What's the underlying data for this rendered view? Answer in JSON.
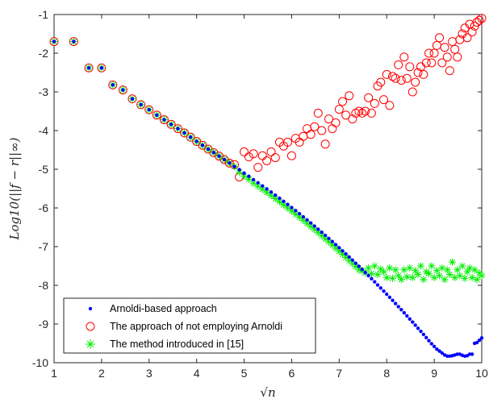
{
  "chart_data": {
    "type": "scatter",
    "title": "",
    "xlabel": "√n",
    "ylabel": "Log10(||f − r||∞)",
    "xlim": [
      1,
      10
    ],
    "ylim": [
      -10,
      -1
    ],
    "xticks": [
      "1",
      "2",
      "3",
      "4",
      "5",
      "6",
      "7",
      "8",
      "9",
      "10"
    ],
    "yticks": [
      "-1",
      "-2",
      "-3",
      "-4",
      "-5",
      "-6",
      "-7",
      "-8",
      "-9",
      "-10"
    ],
    "grid": false,
    "legend_position": "bottom-left",
    "series": [
      {
        "name": "Arnoldi-based approach",
        "marker": "dot",
        "color": "#0000ff",
        "x": [
          1,
          1.414,
          1.732,
          2,
          2.236,
          2.449,
          2.646,
          2.828,
          3,
          3.162,
          3.317,
          3.464,
          3.606,
          3.742,
          3.873,
          4,
          4.123,
          4.243,
          4.359,
          4.472,
          4.583,
          4.69,
          4.796,
          4.899,
          5,
          5.099,
          5.196,
          5.292,
          5.385,
          5.477,
          5.568,
          5.657,
          5.745,
          5.831,
          5.916,
          6,
          6.083,
          6.164,
          6.245,
          6.325,
          6.403,
          6.481,
          6.557,
          6.633,
          6.708,
          6.782,
          6.856,
          6.928,
          7,
          7.071,
          7.141,
          7.211,
          7.28,
          7.348,
          7.416,
          7.483,
          7.55,
          7.616,
          7.681,
          7.746,
          7.81,
          7.874,
          7.937,
          8,
          8.062,
          8.124,
          8.185,
          8.246,
          8.307,
          8.367,
          8.426,
          8.485,
          8.544,
          8.602,
          8.66,
          8.718,
          8.775,
          8.832,
          8.888,
          8.944,
          9,
          9.055,
          9.11,
          9.165,
          9.22,
          9.274,
          9.327,
          9.381,
          9.434,
          9.487,
          9.539,
          9.592,
          9.644,
          9.695,
          9.747,
          9.798,
          9.849,
          9.899,
          9.95,
          10
        ],
        "y": [
          -1.7,
          -1.7,
          -2.38,
          -2.38,
          -2.82,
          -2.95,
          -3.18,
          -3.33,
          -3.46,
          -3.6,
          -3.72,
          -3.84,
          -3.95,
          -4.06,
          -4.17,
          -4.28,
          -4.38,
          -4.48,
          -4.57,
          -4.66,
          -4.75,
          -4.84,
          -4.93,
          -5.01,
          -5.1,
          -5.18,
          -5.27,
          -5.35,
          -5.43,
          -5.51,
          -5.59,
          -5.67,
          -5.75,
          -5.83,
          -5.91,
          -5.99,
          -6.07,
          -6.15,
          -6.23,
          -6.31,
          -6.39,
          -6.47,
          -6.55,
          -6.63,
          -6.71,
          -6.79,
          -6.87,
          -6.95,
          -7.03,
          -7.11,
          -7.19,
          -7.27,
          -7.35,
          -7.43,
          -7.51,
          -7.59,
          -7.67,
          -7.75,
          -7.83,
          -7.91,
          -7.99,
          -8.07,
          -8.15,
          -8.23,
          -8.31,
          -8.39,
          -8.47,
          -8.55,
          -8.63,
          -8.71,
          -8.79,
          -8.87,
          -8.95,
          -9.03,
          -9.11,
          -9.19,
          -9.27,
          -9.35,
          -9.43,
          -9.51,
          -9.58,
          -9.65,
          -9.7,
          -9.75,
          -9.8,
          -9.83,
          -9.83,
          -9.82,
          -9.8,
          -9.78,
          -9.78,
          -9.81,
          -9.83,
          -9.82,
          -9.78,
          -9.78,
          -9.5,
          -9.48,
          -9.42,
          -9.36
        ]
      },
      {
        "name": "The approach of not employing Arnoldi",
        "marker": "circle",
        "color": "#ff0000",
        "x": [
          1,
          1.414,
          1.732,
          2,
          2.236,
          2.449,
          2.646,
          2.828,
          3,
          3.162,
          3.317,
          3.464,
          3.606,
          3.742,
          3.873,
          4,
          4.123,
          4.243,
          4.359,
          4.472,
          4.583,
          4.69,
          4.796,
          4.899,
          5,
          5.099,
          5.196,
          5.292,
          5.385,
          5.477,
          5.568,
          5.657,
          5.745,
          5.831,
          5.916,
          6,
          6.083,
          6.164,
          6.245,
          6.325,
          6.403,
          6.481,
          6.557,
          6.633,
          6.708,
          6.782,
          6.856,
          6.928,
          7,
          7.071,
          7.141,
          7.211,
          7.28,
          7.348,
          7.416,
          7.483,
          7.55,
          7.616,
          7.681,
          7.746,
          7.81,
          7.874,
          7.937,
          8,
          8.062,
          8.124,
          8.185,
          8.246,
          8.307,
          8.367,
          8.426,
          8.485,
          8.544,
          8.602,
          8.66,
          8.718,
          8.775,
          8.832,
          8.888,
          8.944,
          9,
          9.055,
          9.11,
          9.165,
          9.22,
          9.274,
          9.327,
          9.381,
          9.434,
          9.487,
          9.539,
          9.592,
          9.644,
          9.695,
          9.747,
          9.798,
          9.849,
          9.899,
          9.95,
          10
        ],
        "y": [
          -1.7,
          -1.7,
          -2.38,
          -2.38,
          -2.82,
          -2.95,
          -3.18,
          -3.33,
          -3.46,
          -3.6,
          -3.72,
          -3.84,
          -3.95,
          -4.06,
          -4.17,
          -4.28,
          -4.38,
          -4.48,
          -4.57,
          -4.66,
          -4.75,
          -4.84,
          -4.88,
          -5.2,
          -4.55,
          -4.68,
          -4.6,
          -4.95,
          -4.65,
          -4.78,
          -4.55,
          -4.7,
          -4.3,
          -4.4,
          -4.3,
          -4.65,
          -4.2,
          -4.3,
          -4.15,
          -3.95,
          -4.1,
          -3.9,
          -3.55,
          -4.0,
          -4.35,
          -3.7,
          -3.95,
          -3.8,
          -3.45,
          -3.25,
          -3.6,
          -3.1,
          -3.7,
          -3.55,
          -3.5,
          -3.55,
          -3.5,
          -3.15,
          -3.55,
          -3.3,
          -2.85,
          -2.75,
          -3.2,
          -2.55,
          -3.35,
          -2.6,
          -2.65,
          -2.3,
          -2.7,
          -2.1,
          -2.65,
          -2.35,
          -3.0,
          -2.75,
          -2.5,
          -2.35,
          -2.55,
          -2.25,
          -2.0,
          -2.25,
          -2.0,
          -1.8,
          -1.6,
          -2.25,
          -1.85,
          -2.1,
          -2.45,
          -1.7,
          -1.9,
          -2.1,
          -1.65,
          -1.5,
          -1.35,
          -1.6,
          -1.25,
          -1.45,
          -1.3,
          -1.2,
          -1.15,
          -1.1
        ]
      },
      {
        "name": "The method introduced in [15]",
        "marker": "asterisk",
        "color": "#00ee00",
        "x": [
          1,
          1.414,
          1.732,
          2,
          2.236,
          2.449,
          2.646,
          2.828,
          3,
          3.162,
          3.317,
          3.464,
          3.606,
          3.742,
          3.873,
          4,
          4.123,
          4.243,
          4.359,
          4.472,
          4.583,
          4.69,
          4.796,
          4.899,
          5,
          5.099,
          5.196,
          5.292,
          5.385,
          5.477,
          5.568,
          5.657,
          5.745,
          5.831,
          5.916,
          6,
          6.083,
          6.164,
          6.245,
          6.325,
          6.403,
          6.481,
          6.557,
          6.633,
          6.708,
          6.782,
          6.856,
          6.928,
          7,
          7.071,
          7.141,
          7.211,
          7.28,
          7.348,
          7.416,
          7.483,
          7.55,
          7.616,
          7.681,
          7.746,
          7.81,
          7.874,
          7.937,
          8,
          8.062,
          8.124,
          8.185,
          8.246,
          8.307,
          8.367,
          8.426,
          8.485,
          8.544,
          8.602,
          8.66,
          8.718,
          8.775,
          8.832,
          8.888,
          8.944,
          9,
          9.055,
          9.11,
          9.165,
          9.22,
          9.274,
          9.327,
          9.381,
          9.434,
          9.487,
          9.539,
          9.592,
          9.644,
          9.695,
          9.747,
          9.798,
          9.849,
          9.899,
          9.95,
          10
        ],
        "y": [
          -1.7,
          -1.7,
          -2.38,
          -2.38,
          -2.82,
          -2.95,
          -3.18,
          -3.33,
          -3.46,
          -3.6,
          -3.72,
          -3.84,
          -3.95,
          -4.06,
          -4.17,
          -4.28,
          -4.38,
          -4.48,
          -4.57,
          -4.66,
          -4.75,
          -4.84,
          -4.93,
          -5.08,
          -5.18,
          -5.26,
          -5.36,
          -5.44,
          -5.52,
          -5.6,
          -5.68,
          -5.76,
          -5.84,
          -5.92,
          -6.0,
          -6.08,
          -6.16,
          -6.24,
          -6.32,
          -6.4,
          -6.48,
          -6.56,
          -6.64,
          -6.72,
          -6.8,
          -6.88,
          -6.96,
          -7.04,
          -7.12,
          -7.2,
          -7.28,
          -7.36,
          -7.44,
          -7.52,
          -7.6,
          -7.62,
          -7.68,
          -7.55,
          -7.7,
          -7.5,
          -7.72,
          -7.58,
          -7.65,
          -7.8,
          -7.55,
          -7.82,
          -7.6,
          -7.75,
          -7.85,
          -7.6,
          -7.78,
          -7.55,
          -7.8,
          -7.62,
          -7.72,
          -7.5,
          -7.85,
          -7.65,
          -7.7,
          -7.5,
          -7.8,
          -7.62,
          -7.75,
          -7.55,
          -7.85,
          -7.6,
          -7.72,
          -7.4,
          -7.8,
          -7.6,
          -7.75,
          -7.5,
          -7.82,
          -7.65,
          -7.55,
          -7.8,
          -7.6,
          -7.85,
          -7.68,
          -7.75
        ]
      }
    ]
  }
}
